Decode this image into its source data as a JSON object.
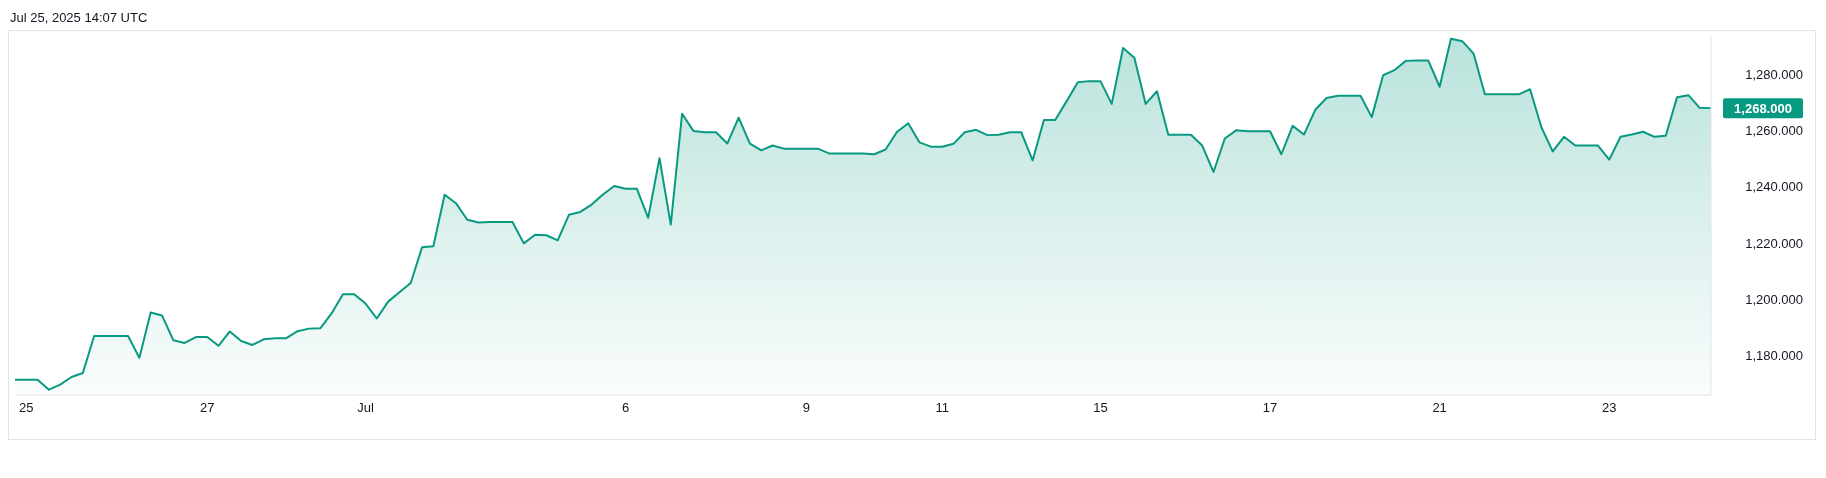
{
  "chart_data": {
    "type": "area",
    "annotations": [
      "Jul 25, 2025 14:07 UTC"
    ],
    "categories": [
      null,
      "25",
      null,
      null,
      null,
      null,
      null,
      null,
      null,
      null,
      null,
      null,
      null,
      null,
      null,
      null,
      null,
      "27",
      null,
      null,
      null,
      null,
      null,
      null,
      null,
      null,
      null,
      null,
      null,
      null,
      null,
      "Jul",
      null,
      null,
      null,
      null,
      null,
      null,
      null,
      null,
      null,
      null,
      null,
      null,
      null,
      null,
      null,
      null,
      null,
      null,
      null,
      null,
      null,
      null,
      "6",
      null,
      null,
      null,
      null,
      null,
      null,
      null,
      null,
      null,
      null,
      null,
      null,
      null,
      null,
      null,
      "9",
      null,
      null,
      null,
      null,
      null,
      null,
      null,
      null,
      null,
      null,
      null,
      "11",
      null,
      null,
      null,
      null,
      null,
      null,
      null,
      null,
      null,
      null,
      null,
      null,
      null,
      "15",
      null,
      null,
      null,
      null,
      null,
      null,
      null,
      null,
      null,
      null,
      null,
      null,
      null,
      null,
      "17",
      null,
      null,
      null,
      null,
      null,
      null,
      null,
      null,
      null,
      null,
      null,
      null,
      null,
      null,
      "21",
      null,
      null,
      null,
      null,
      null,
      null,
      null,
      null,
      null,
      null,
      null,
      null,
      null,
      null,
      "23",
      null,
      null,
      null,
      null,
      null,
      null,
      null,
      null,
      null
    ],
    "values": [
      1171.4,
      1171.4,
      1171.4,
      1167.9,
      1169.7,
      1172.4,
      1173.8,
      1187.0,
      1187.0,
      1187.0,
      1187.0,
      1179.2,
      1195.3,
      1194.3,
      1185.5,
      1184.5,
      1186.6,
      1186.6,
      1183.5,
      1188.6,
      1185.2,
      1183.8,
      1185.8,
      1186.2,
      1186.2,
      1188.7,
      1189.6,
      1189.7,
      1195.0,
      1201.8,
      1201.8,
      1198.5,
      1193.2,
      1199.2,
      1202.5,
      1205.8,
      1218.5,
      1218.9,
      1237.2,
      1234.2,
      1228.3,
      1227.3,
      1227.5,
      1227.5,
      1227.5,
      1219.9,
      1223.0,
      1222.8,
      1221.0,
      1230.1,
      1231.1,
      1233.7,
      1237.3,
      1240.3,
      1239.3,
      1239.3,
      1229.0,
      1250.2,
      1226.6,
      1266.0,
      1259.9,
      1259.4,
      1259.4,
      1255.4,
      1264.6,
      1255.4,
      1253.0,
      1254.7,
      1253.6,
      1253.6,
      1253.6,
      1253.6,
      1251.9,
      1251.9,
      1251.9,
      1251.9,
      1251.6,
      1253.3,
      1259.5,
      1262.6,
      1255.8,
      1254.3,
      1254.3,
      1255.3,
      1259.4,
      1260.3,
      1258.4,
      1258.5,
      1259.4,
      1259.4,
      1249.4,
      1263.8,
      1263.8,
      1270.4,
      1277.2,
      1277.6,
      1277.6,
      1269.5,
      1289.4,
      1285.9,
      1269.5,
      1274.0,
      1258.5,
      1258.5,
      1258.5,
      1254.7,
      1245.3,
      1257.2,
      1260.1,
      1259.8,
      1259.8,
      1259.8,
      1251.6,
      1261.7,
      1258.6,
      1267.4,
      1271.6,
      1272.4,
      1272.4,
      1272.4,
      1264.8,
      1279.7,
      1281.5,
      1284.8,
      1284.9,
      1284.9,
      1275.6,
      1292.7,
      1291.8,
      1287.4,
      1272.9,
      1272.9,
      1272.9,
      1272.9,
      1274.7,
      1261.2,
      1252.6,
      1257.8,
      1254.7,
      1254.7,
      1254.7,
      1249.7,
      1257.8,
      1258.6,
      1259.6,
      1257.8,
      1258.2,
      1271.9,
      1272.6,
      1268.1,
      1268.0
    ],
    "value_labels": [
      null,
      null,
      null,
      null,
      null,
      null,
      null,
      null,
      null,
      null,
      null,
      null,
      null,
      null,
      null,
      null,
      null,
      null,
      null,
      null,
      null,
      null,
      null,
      null,
      null,
      null,
      null,
      null,
      null,
      null,
      null,
      null,
      null,
      null,
      null,
      null,
      null,
      null,
      null,
      null,
      null,
      null,
      null,
      null,
      null,
      null,
      null,
      null,
      null,
      null,
      null,
      null,
      null,
      null,
      null,
      null,
      null,
      null,
      null,
      null,
      null,
      null,
      null,
      null,
      null,
      null,
      null,
      null,
      null,
      null,
      null,
      null,
      null,
      null,
      null,
      null,
      null,
      null,
      null,
      null,
      null,
      null,
      null,
      null,
      null,
      null,
      null,
      null,
      null,
      null,
      null,
      null,
      null,
      null,
      null,
      null,
      null,
      null,
      null,
      null,
      null,
      null,
      null,
      null,
      null,
      null,
      null,
      null,
      null,
      null,
      null,
      null,
      null,
      null,
      null,
      null,
      null,
      null,
      null,
      null,
      null,
      null,
      null,
      null,
      null,
      null,
      null,
      null,
      null,
      null,
      null,
      null,
      null,
      null,
      null,
      null,
      null,
      null,
      null,
      null,
      null,
      null,
      null,
      null,
      null,
      null,
      null,
      null,
      null,
      null,
      "1,268.000"
    ],
    "color": "#089981",
    "ylim": [
      1166,
      1294
    ],
    "yticks": [
      {
        "value": 1180,
        "label": "1,180.000"
      },
      {
        "value": 1200,
        "label": "1,200.000"
      },
      {
        "value": 1220,
        "label": "1,220.000"
      },
      {
        "value": 1240,
        "label": "1,240.000"
      },
      {
        "value": 1260,
        "label": "1,260.000"
      },
      {
        "value": 1280,
        "label": "1,280.000"
      }
    ]
  }
}
